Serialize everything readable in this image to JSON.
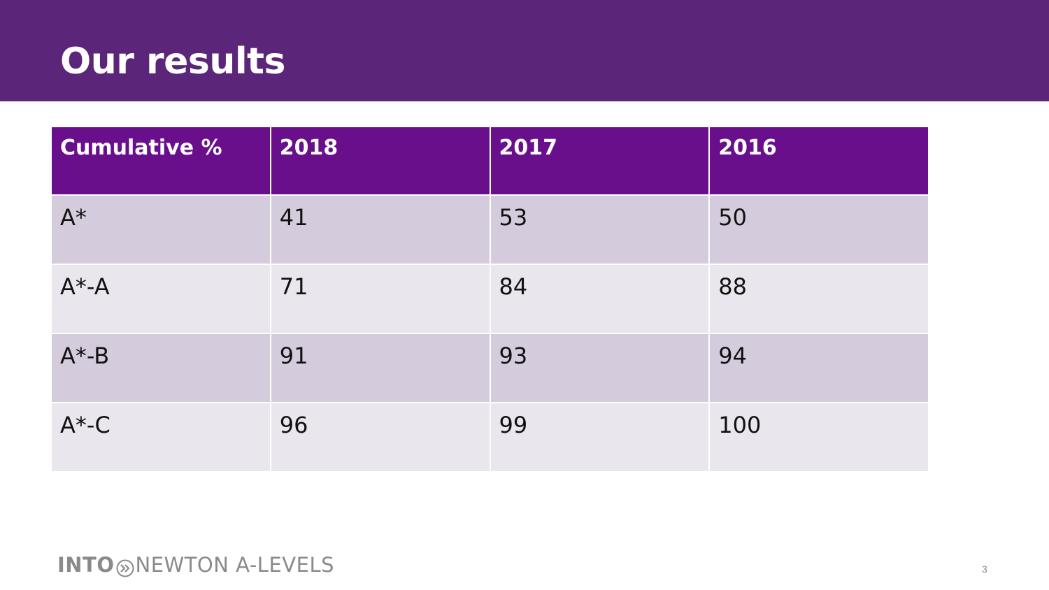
{
  "slide": {
    "title": "Our results",
    "number": "3"
  },
  "table": {
    "headers": [
      "Cumulative %",
      "2018",
      "2017",
      "2016"
    ],
    "rows": [
      [
        "A*",
        "41",
        "53",
        "50"
      ],
      [
        "A*-A",
        "71",
        "84",
        "88"
      ],
      [
        "A*-B",
        "91",
        "93",
        "94"
      ],
      [
        "A*-C",
        "96",
        "99",
        "100"
      ]
    ]
  },
  "footer": {
    "logo_into": "INTO",
    "logo_rest": "NEWTON A-LEVELS",
    "logo_icon": "double-chevron-circle-icon"
  },
  "colors": {
    "header_bar": "#5b2679",
    "table_header": "#6a0f8c",
    "row_odd": "#d4ccdd",
    "row_even": "#e9e6ed",
    "footer_text": "#8a8a8a"
  }
}
